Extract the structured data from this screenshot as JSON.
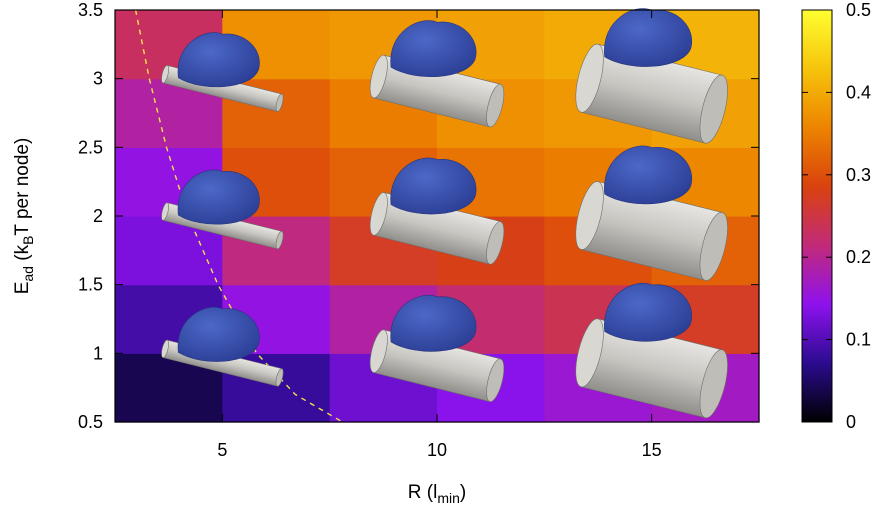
{
  "chart_data": {
    "type": "heatmap",
    "title": "",
    "xlabel": {
      "main": "R (l",
      "sub": "min",
      "close": ")"
    },
    "ylabel": {
      "main": "E",
      "sub1": "ad",
      "mid": " (k",
      "sub2": "B",
      "tail": "T per node)"
    },
    "xlim": [
      2.5,
      17.5
    ],
    "ylim": [
      0.5,
      3.5
    ],
    "x_ticks": [
      5,
      10,
      15
    ],
    "x_tick_labels": [
      "5",
      "10",
      "15"
    ],
    "y_ticks": [
      0.5,
      1,
      1.5,
      2,
      2.5,
      3,
      3.5
    ],
    "y_tick_labels": [
      "0.5",
      "1",
      "1.5",
      "2",
      "2.5",
      "3",
      "3.5"
    ],
    "x_edges": [
      2.5,
      5,
      7.5,
      10,
      12.5,
      15,
      17.5
    ],
    "y_edges": [
      0.5,
      1,
      1.5,
      2,
      2.5,
      3,
      3.5
    ],
    "z_rows_bottom_to_top": [
      [
        0.04,
        0.08,
        0.12,
        0.14,
        0.16,
        0.17
      ],
      [
        0.09,
        0.15,
        0.19,
        0.22,
        0.24,
        0.27
      ],
      [
        0.13,
        0.21,
        0.27,
        0.28,
        0.3,
        0.32
      ],
      [
        0.15,
        0.3,
        0.32,
        0.34,
        0.35,
        0.36
      ],
      [
        0.19,
        0.32,
        0.35,
        0.37,
        0.38,
        0.39
      ],
      [
        0.23,
        0.37,
        0.38,
        0.39,
        0.4,
        0.41
      ]
    ],
    "colorbar": {
      "range": [
        0,
        0.5
      ],
      "ticks": [
        0,
        0.1,
        0.2,
        0.3,
        0.4,
        0.5
      ],
      "tick_labels": [
        "0",
        "0.1",
        "0.2",
        "0.3",
        "0.4",
        "0.5"
      ],
      "stops": [
        "#000000",
        "#2b0b8f",
        "#8e12ee",
        "#c22a79",
        "#d9420e",
        "#ed8400",
        "#f6c40c",
        "#ffff30"
      ]
    },
    "boundary_curve": {
      "style": "dashed",
      "color": "#f2e14a",
      "points": [
        [
          2.98,
          3.5
        ],
        [
          3.3,
          3.0
        ],
        [
          3.7,
          2.5
        ],
        [
          4.2,
          2.0
        ],
        [
          4.9,
          1.5
        ],
        [
          5.8,
          1.0
        ],
        [
          6.7,
          0.7
        ],
        [
          7.8,
          0.5
        ]
      ]
    },
    "insets": {
      "droplet_color": "#3a53b0",
      "cylinder_color": "#c4c3bf",
      "items": [
        {
          "x": 5,
          "y": 3,
          "radius": "small"
        },
        {
          "x": 10,
          "y": 3,
          "radius": "medium"
        },
        {
          "x": 15,
          "y": 3,
          "radius": "large"
        },
        {
          "x": 5,
          "y": 2,
          "radius": "small"
        },
        {
          "x": 10,
          "y": 2,
          "radius": "medium"
        },
        {
          "x": 15,
          "y": 2,
          "radius": "large"
        },
        {
          "x": 5,
          "y": 1,
          "radius": "small"
        },
        {
          "x": 10,
          "y": 1,
          "radius": "medium"
        },
        {
          "x": 15,
          "y": 1,
          "radius": "large"
        }
      ]
    }
  }
}
